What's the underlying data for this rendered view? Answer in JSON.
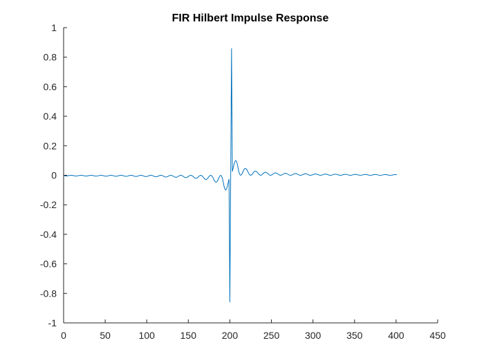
{
  "chart_data": {
    "type": "line",
    "title": "FIR Hilbert Impulse Response",
    "xlabel": "",
    "ylabel": "",
    "xlim": [
      0,
      450
    ],
    "ylim": [
      -1,
      1
    ],
    "xticks": [
      0,
      50,
      100,
      150,
      200,
      250,
      300,
      350,
      400,
      450
    ],
    "yticks": [
      -1,
      -0.8,
      -0.6,
      -0.4,
      -0.2,
      0,
      0.2,
      0.4,
      0.6,
      0.8,
      1
    ],
    "xtick_labels": [
      "0",
      "50",
      "100",
      "150",
      "200",
      "250",
      "300",
      "350",
      "400",
      "450"
    ],
    "ytick_labels": [
      "-1",
      "-0.8",
      "-0.6",
      "-0.4",
      "-0.2",
      "0",
      "0.2",
      "0.4",
      "0.6",
      "0.8",
      "1"
    ],
    "grid": false,
    "series": [
      {
        "color": "#0072BD",
        "x": [
          0,
          201,
          202,
          203,
          401
        ],
        "y": [
          0.0,
          -0.86,
          0.0,
          0.86,
          0.0
        ],
        "description_samples": {
          "x": [
            1,
            50,
            100,
            150,
            170,
            180,
            185,
            190,
            193,
            196,
            198,
            199,
            200,
            201,
            202,
            203,
            204,
            206,
            210,
            215,
            220,
            230,
            250,
            300,
            350,
            401
          ],
          "y": [
            0.0,
            0.0,
            0.0,
            -0.003,
            -0.012,
            -0.02,
            -0.04,
            -0.06,
            -0.09,
            -0.05,
            0.0,
            -0.4,
            -0.86,
            0.0,
            0.86,
            0.3,
            0.0,
            0.06,
            0.09,
            0.04,
            0.02,
            0.012,
            0.006,
            0.003,
            0.002,
            0.005
          ]
        }
      }
    ]
  }
}
